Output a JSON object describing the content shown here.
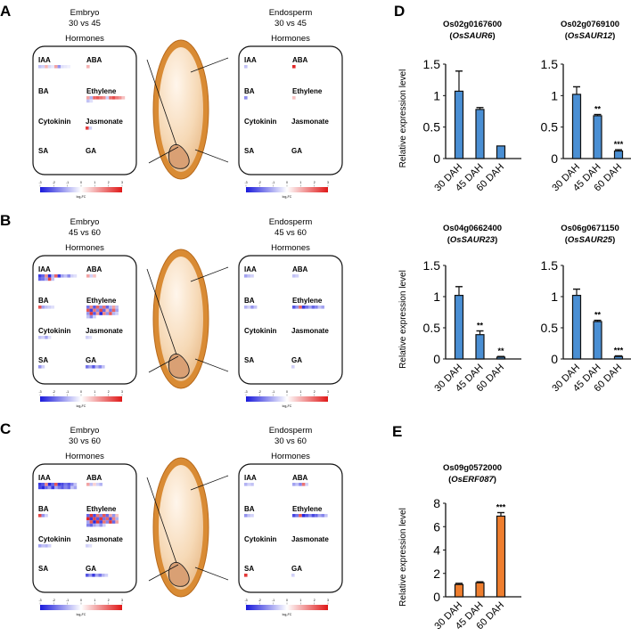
{
  "hormone_panels": [
    {
      "letter": "A",
      "embryo": {
        "tissue": "Embryo",
        "comparison": "30 vs 45",
        "heading": "Hormones",
        "cells": {
          "IAA": [
            [
              -0.8,
              -0.6,
              1,
              -0.5,
              -0.3,
              1.2,
              -1.4,
              -0.4,
              -0.3,
              -0.2
            ]
          ],
          "ABA": [
            [
              1
            ]
          ],
          "BA": [],
          "Ethylene": [
            [
              1.2,
              -1,
              2,
              2.2,
              1.8,
              1.5,
              -0.6,
              1.9,
              2.3,
              1.7,
              1.4,
              0.8
            ],
            [
              -0.8,
              -0.4
            ]
          ],
          "Cytokinin": [],
          "Jasmonate": [
            [
              2.5,
              -0.6
            ]
          ],
          "SA": [],
          "GA": []
        }
      },
      "endosperm": {
        "tissue": "Endosperm",
        "comparison": "30 vs 45",
        "heading": "Hormones",
        "cells": {
          "IAA": [
            [
              -0.8
            ]
          ],
          "ABA": [
            [
              2.8
            ]
          ],
          "BA": [
            [
              -1.5
            ]
          ],
          "Ethylene": [
            [
              0.8
            ]
          ],
          "Cytokinin": [],
          "Jasmonate": [],
          "SA": [],
          "GA": []
        }
      }
    },
    {
      "letter": "B",
      "embryo": {
        "tissue": "Embryo",
        "comparison": "45 vs 60",
        "heading": "Hormones",
        "cells": {
          "IAA": [
            [
              -2.5,
              -2,
              1.5,
              -2.8,
              -1,
              2,
              -2.6,
              -1.2,
              -0.8,
              -1.5,
              -0.6,
              -0.4
            ],
            [
              -2,
              -1.8,
              -1.2,
              2.4,
              -0.8
            ]
          ],
          "ABA": [
            [
              1.2,
              -0.6,
              0.8
            ]
          ],
          "BA": [
            [
              2.2,
              -1.2,
              -0.8,
              -0.6,
              -0.4
            ]
          ],
          "Ethylene": [
            [
              -1.8,
              1.5,
              -2.2,
              2,
              -1.5,
              1.8,
              -2,
              -1,
              1.2,
              -0.8
            ],
            [
              2.2,
              -2.5,
              1.8,
              -1.6,
              2.4,
              -2,
              1,
              -1.8,
              2,
              -1.2
            ],
            [
              -1.4,
              2.6,
              -2.2,
              1.4,
              -2.8,
              1.6,
              -1.4,
              2.2,
              -1,
              -0.6
            ],
            [
              -0.8,
              -1.6,
              -0.6
            ]
          ],
          "Cytokinin": [
            [
              -0.8,
              -0.6,
              -1.2,
              -0.4
            ]
          ],
          "Jasmonate": [
            [
              -0.6,
              -0.4
            ]
          ],
          "SA": [
            [
              -1.4,
              -0.6
            ]
          ],
          "GA": [
            [
              -1.8,
              -1.2,
              -2.2,
              -1,
              -1.6,
              -0.8
            ]
          ]
        }
      },
      "endosperm": {
        "tissue": "Endosperm",
        "comparison": "45 vs 60",
        "heading": "Hormones",
        "cells": {
          "IAA": [
            [
              -1.2,
              -0.8,
              -0.6
            ]
          ],
          "ABA": [
            [
              -0.8,
              -0.6
            ]
          ],
          "BA": [
            [
              -1,
              -0.6,
              -1.4,
              -0.8
            ]
          ],
          "Ethylene": [
            [
              -2.2,
              -1.4,
              2,
              -2.6,
              -1.8,
              -1.2,
              -2,
              -1.6,
              -0.8,
              -1.2
            ]
          ],
          "Cytokinin": [],
          "Jasmonate": [],
          "SA": [],
          "GA": [
            [
              -0.6
            ]
          ]
        }
      }
    },
    {
      "letter": "C",
      "embryo": {
        "tissue": "Embryo",
        "comparison": "30 vs 60",
        "heading": "Hormones",
        "cells": {
          "IAA": [
            [
              -2.6,
              -2.2,
              1.6,
              -2.8,
              -2,
              2.2,
              -2.6,
              -2.4,
              -1.8,
              -2.2,
              -1.6,
              -0.8
            ],
            [
              -2.4,
              -2.8,
              -2,
              -1.4,
              -2.6,
              -1.2,
              -1.8,
              -2.2,
              -1.6,
              -2,
              -0.8,
              -1.2
            ]
          ],
          "ABA": [
            [
              1.2,
              -0.8,
              0.6,
              -0.6,
              -1
            ]
          ],
          "BA": [
            [
              2.4,
              -1.4,
              -0.6
            ]
          ],
          "Ethylene": [
            [
              -2,
              2.6,
              -2.4,
              1.8,
              -1.6,
              2.2,
              -2,
              1.2,
              -1.4,
              0.8
            ],
            [
              2.8,
              -2.6,
              2.4,
              -2.2,
              2.6,
              -1.8,
              2,
              -2.4,
              1.6,
              -1
            ],
            [
              -1.2,
              2.2,
              -2.8,
              2.6,
              -2.4,
              1.8,
              -1.6,
              2.6,
              -2,
              1.2
            ],
            [
              -1.6,
              -2,
              -1.2,
              -0.8,
              -1.4,
              -0.6
            ]
          ],
          "Cytokinin": [
            [
              -1.2,
              -0.8,
              -1,
              -0.6
            ]
          ],
          "Jasmonate": [
            [
              -0.6,
              -0.4
            ]
          ],
          "SA": [],
          "GA": [
            [
              -2.2,
              -1.4,
              -2.6,
              -1.2,
              -1.8,
              -1,
              -0.6
            ]
          ]
        }
      },
      "endosperm": {
        "tissue": "Endosperm",
        "comparison": "30 vs 60",
        "heading": "Hormones",
        "cells": {
          "IAA": [
            [
              -1,
              -0.6,
              -0.8
            ]
          ],
          "ABA": [
            [
              -1.2,
              -0.8,
              -1.6,
              1.8,
              -0.6
            ]
          ],
          "BA": [
            [
              -1.4,
              -0.8,
              -0.6
            ]
          ],
          "Ethylene": [
            [
              -2.4,
              -1.8,
              2.2,
              -2.8,
              -2.2,
              -1.6,
              -2.4,
              -2,
              -1.2,
              -1.6,
              -0.8
            ]
          ],
          "Cytokinin": [],
          "Jasmonate": [],
          "SA": [
            [
              2.6
            ]
          ],
          "GA": [
            [
              -0.6
            ]
          ]
        }
      }
    }
  ],
  "hormone_labels": [
    "IAA",
    "ABA",
    "BA",
    "Ethylene",
    "Cytokinin",
    "Jasmonate",
    "SA",
    "GA"
  ],
  "color_scale": {
    "ticks": [
      "-3",
      "-2",
      "-1",
      "0",
      "1",
      "2",
      "3"
    ],
    "label": "log₂FC",
    "low": "#1a1adb",
    "mid": "#ffffff",
    "high": "#e01818"
  },
  "panel_letters": {
    "D": "D",
    "E": "E"
  },
  "chart_data": [
    {
      "type": "bar",
      "panel": "D",
      "title": "Os02g0167600",
      "gene": "OsSAUR6",
      "ylabel": "Relative expression level",
      "categories": [
        "30 DAH",
        "45 DAH",
        "60 DAH"
      ],
      "values": [
        1.07,
        0.78,
        0.2
      ],
      "errors": [
        0.32,
        0.03,
        0.0
      ],
      "significance": [
        "",
        "",
        ""
      ],
      "ylim": [
        0,
        1.5
      ],
      "yticks": [
        "0",
        "0.5",
        "1",
        "1.5"
      ],
      "color": "#4a8fd4"
    },
    {
      "type": "bar",
      "panel": "D",
      "title": "Os02g0769100",
      "gene": "OsSAUR12",
      "ylabel": "",
      "categories": [
        "30 DAH",
        "45 DAH",
        "60 DAH"
      ],
      "values": [
        1.02,
        0.68,
        0.12
      ],
      "errors": [
        0.12,
        0.02,
        0.02
      ],
      "significance": [
        "",
        "**",
        "***"
      ],
      "ylim": [
        0,
        1.5
      ],
      "yticks": [
        "0",
        "0.5",
        "1",
        "1.5"
      ],
      "color": "#4a8fd4"
    },
    {
      "type": "bar",
      "panel": "D",
      "title": "Os04g0662400",
      "gene": "OsSAUR23",
      "ylabel": "Relative expression level",
      "categories": [
        "30 DAH",
        "45 DAH",
        "60 DAH"
      ],
      "values": [
        1.02,
        0.39,
        0.03
      ],
      "errors": [
        0.14,
        0.06,
        0.01
      ],
      "significance": [
        "",
        "**",
        "**"
      ],
      "ylim": [
        0,
        1.5
      ],
      "yticks": [
        "0",
        "0.5",
        "1",
        "1.5"
      ],
      "color": "#4a8fd4"
    },
    {
      "type": "bar",
      "panel": "D",
      "title": "Os06g0671150",
      "gene": "OsSAUR25",
      "ylabel": "",
      "categories": [
        "30 DAH",
        "45 DAH",
        "60 DAH"
      ],
      "values": [
        1.02,
        0.6,
        0.04
      ],
      "errors": [
        0.1,
        0.02,
        0.01
      ],
      "significance": [
        "",
        "**",
        "***"
      ],
      "ylim": [
        0,
        1.5
      ],
      "yticks": [
        "0",
        "0.5",
        "1",
        "1.5"
      ],
      "color": "#4a8fd4"
    },
    {
      "type": "bar",
      "panel": "E",
      "title": "Os09g0572000",
      "gene": "OsERF087",
      "ylabel": "Relative expression level",
      "categories": [
        "30 DAH",
        "45 DAH",
        "60 DAH"
      ],
      "values": [
        1.05,
        1.2,
        6.9
      ],
      "errors": [
        0.1,
        0.08,
        0.3
      ],
      "significance": [
        "",
        "",
        "***"
      ],
      "ylim": [
        0,
        8
      ],
      "yticks": [
        "0",
        "2",
        "4",
        "6",
        "8"
      ],
      "color": "#ef7e2e"
    }
  ]
}
